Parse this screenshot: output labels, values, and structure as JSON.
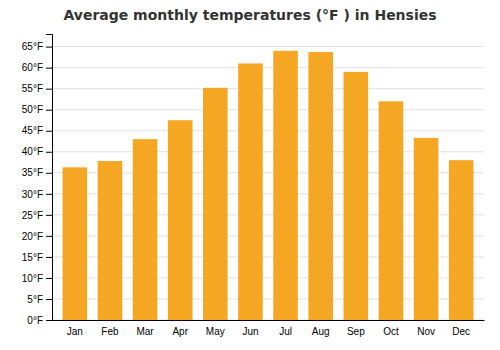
{
  "chart_data": {
    "type": "bar",
    "title": "Average monthly temperatures (°F ) in Hensies",
    "categories": [
      "Jan",
      "Feb",
      "Mar",
      "Apr",
      "May",
      "Jun",
      "Jul",
      "Aug",
      "Sep",
      "Oct",
      "Nov",
      "Dec"
    ],
    "values": [
      36.3,
      37.8,
      43.0,
      47.5,
      55.2,
      61.0,
      64.0,
      63.7,
      59.0,
      52.0,
      43.3,
      38.0
    ],
    "color": "#F5A623",
    "ylim": [
      0,
      68
    ],
    "yticks": [
      {
        "value": 0,
        "label": "0°F"
      },
      {
        "value": 5,
        "label": "5°F"
      },
      {
        "value": 10,
        "label": "10°F"
      },
      {
        "value": 15,
        "label": "15°F"
      },
      {
        "value": 20,
        "label": "20°F"
      },
      {
        "value": 25,
        "label": "25°F"
      },
      {
        "value": 30,
        "label": "30°F"
      },
      {
        "value": 35,
        "label": "35°F"
      },
      {
        "value": 40,
        "label": "40°F"
      },
      {
        "value": 45,
        "label": "45°F"
      },
      {
        "value": 50,
        "label": "50°F"
      },
      {
        "value": 55,
        "label": "55°F"
      },
      {
        "value": 60,
        "label": "60°F"
      },
      {
        "value": 65,
        "label": "65°F"
      }
    ],
    "grid": true
  }
}
